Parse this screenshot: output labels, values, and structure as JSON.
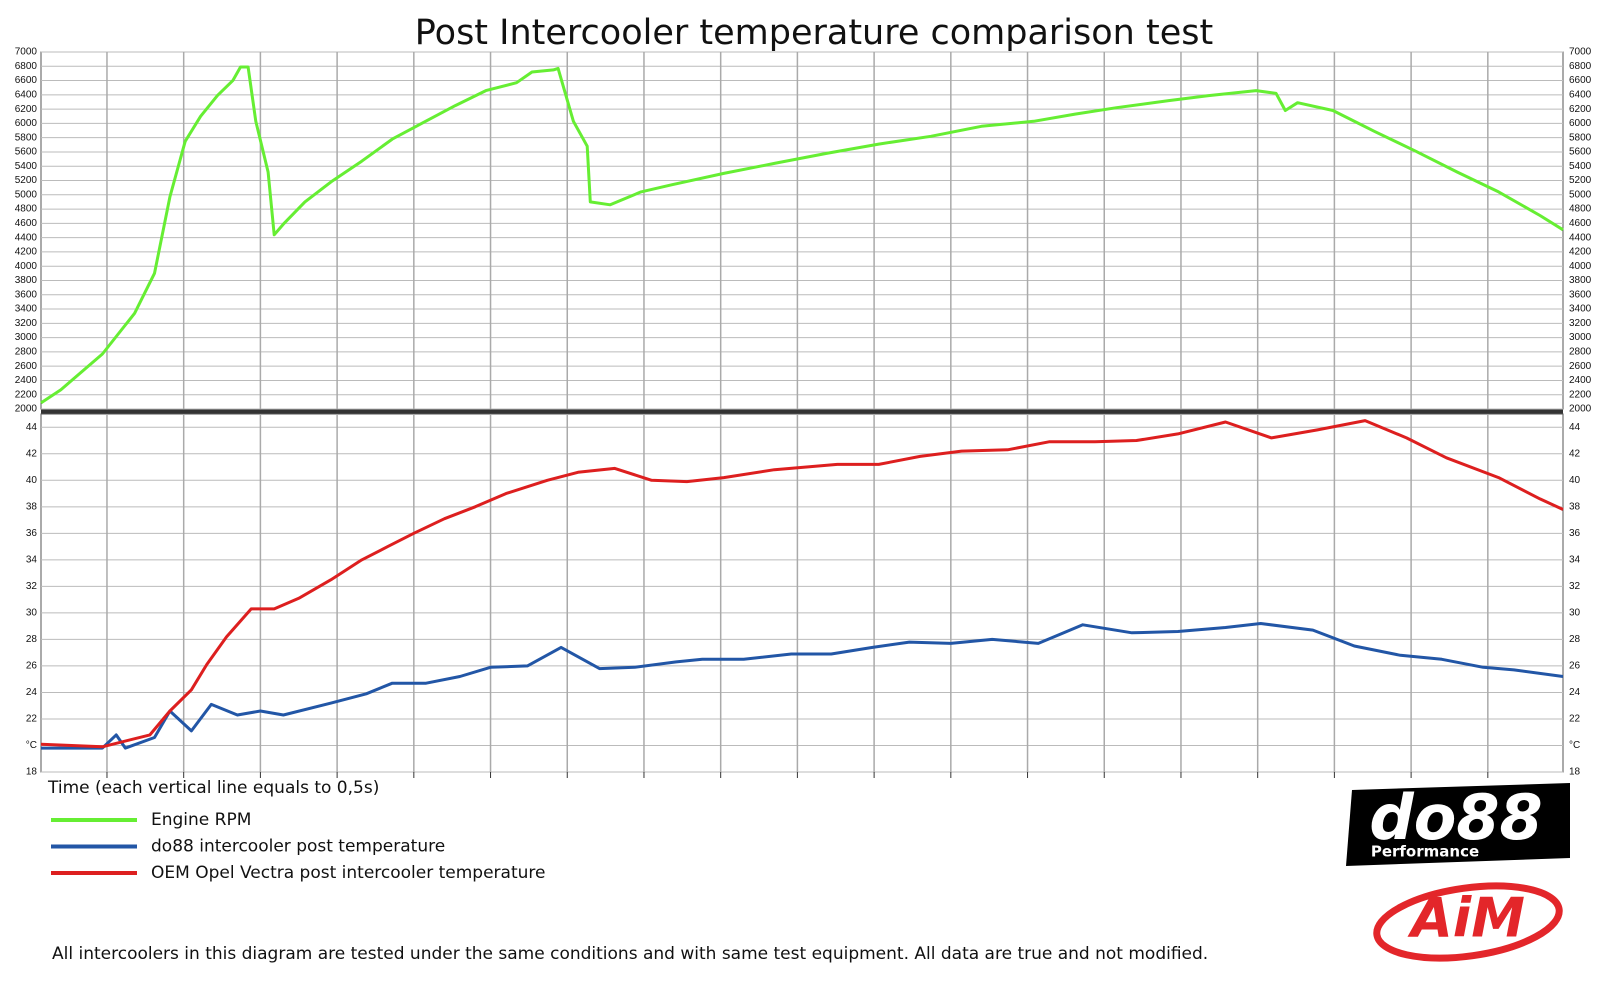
{
  "chart_data": [
    {
      "type": "line",
      "title": "Post Intercooler temperature comparison test",
      "xlim": [
        0.07,
        9.99
      ],
      "xticks": [
        0.5,
        1,
        1.5,
        2,
        2.5,
        3,
        3.5,
        4,
        4.5,
        5,
        5.5,
        6,
        6.5,
        7,
        7.5,
        8,
        8.5,
        9,
        9.5
      ],
      "ylim": [
        2000,
        7000
      ],
      "yticks": [
        2000,
        2200,
        2400,
        2600,
        2800,
        3000,
        3200,
        3400,
        3600,
        3800,
        4000,
        4200,
        4400,
        4600,
        4800,
        5000,
        5200,
        5400,
        5600,
        5800,
        6000,
        6200,
        6400,
        6600,
        6800,
        7000
      ],
      "grid": true,
      "series": [
        {
          "name": "Engine RPM",
          "color": "#66ee33",
          "x": [
            0.07,
            0.2,
            0.47,
            0.68,
            0.81,
            0.91,
            1.01,
            1.11,
            1.22,
            1.32,
            1.37,
            1.42,
            1.47,
            1.55,
            1.59,
            1.65,
            1.79,
            1.96,
            2.16,
            2.36,
            2.56,
            2.77,
            2.97,
            3.17,
            3.27,
            3.41,
            3.44,
            3.54,
            3.63,
            3.65,
            3.78,
            3.98,
            4.18,
            4.52,
            4.85,
            5.19,
            5.53,
            5.87,
            6.2,
            6.54,
            6.81,
            7.08,
            7.42,
            7.68,
            7.99,
            8.12,
            8.18,
            8.26,
            8.49,
            8.76,
            9.03,
            9.3,
            9.57,
            9.84,
            9.99
          ],
          "values": [
            2085,
            2270,
            2770,
            3340,
            3900,
            4970,
            5750,
            6100,
            6390,
            6600,
            6790,
            6790,
            6030,
            5320,
            4440,
            4590,
            4900,
            5180,
            5470,
            5780,
            6010,
            6250,
            6460,
            6570,
            6720,
            6750,
            6770,
            6030,
            5680,
            4900,
            4860,
            5040,
            5140,
            5300,
            5440,
            5580,
            5710,
            5820,
            5960,
            6030,
            6130,
            6220,
            6320,
            6390,
            6460,
            6420,
            6180,
            6290,
            6180,
            5890,
            5610,
            5320,
            5040,
            4710,
            4510
          ]
        }
      ]
    },
    {
      "type": "line",
      "x_label": "Time (each vertical line equals to 0,5s)",
      "xlim": [
        0.07,
        9.99
      ],
      "xticks": [
        0.5,
        1,
        1.5,
        2,
        2.5,
        3,
        3.5,
        4,
        4.5,
        5,
        5.5,
        6,
        6.5,
        7,
        7.5,
        8,
        8.5,
        9,
        9.5
      ],
      "ylim": [
        18,
        45
      ],
      "yticks": [
        18,
        {
          "value": 20,
          "label": "°C"
        },
        22,
        24,
        26,
        28,
        30,
        32,
        34,
        36,
        38,
        40,
        42,
        44
      ],
      "grid": true,
      "series": [
        {
          "name": "do88 intercooler post temperature",
          "color": "#2256a6",
          "x": [
            0.07,
            0.47,
            0.56,
            0.62,
            0.81,
            0.91,
            1.05,
            1.18,
            1.35,
            1.5,
            1.65,
            1.96,
            2.19,
            2.36,
            2.58,
            2.8,
            3,
            3.24,
            3.46,
            3.71,
            3.94,
            4.21,
            4.38,
            4.65,
            4.96,
            5.22,
            5.49,
            5.73,
            6,
            6.27,
            6.57,
            6.86,
            7.18,
            7.48,
            7.79,
            8.02,
            8.36,
            8.63,
            8.93,
            9.2,
            9.47,
            9.67,
            9.99
          ],
          "values": [
            19.8,
            19.8,
            20.8,
            19.8,
            20.6,
            22.6,
            21.1,
            23.1,
            22.3,
            22.6,
            22.3,
            23.2,
            23.9,
            24.7,
            24.7,
            25.2,
            25.9,
            26,
            27.4,
            25.8,
            25.9,
            26.3,
            26.5,
            26.5,
            26.9,
            26.9,
            27.4,
            27.8,
            27.7,
            28,
            27.7,
            29.1,
            28.5,
            28.6,
            28.9,
            29.2,
            28.7,
            27.5,
            26.8,
            26.5,
            25.9,
            25.7,
            25.2
          ]
        },
        {
          "name": "OEM Opel Vectra post intercooler temperature",
          "color": "#dd1f1f",
          "x": [
            0.07,
            0.47,
            0.78,
            0.91,
            1.05,
            1.15,
            1.28,
            1.44,
            1.59,
            1.75,
            1.96,
            2.16,
            2.33,
            2.5,
            2.7,
            2.9,
            3.1,
            3.37,
            3.57,
            3.81,
            4.05,
            4.28,
            4.52,
            4.85,
            5.26,
            5.53,
            5.8,
            6.07,
            6.37,
            6.64,
            6.94,
            7.21,
            7.48,
            7.79,
            8.09,
            8.39,
            8.7,
            8.97,
            9.23,
            9.57,
            9.84,
            9.99
          ],
          "values": [
            20.1,
            19.9,
            20.8,
            22.6,
            24.2,
            26.1,
            28.2,
            30.3,
            30.3,
            31.1,
            32.5,
            34,
            35,
            36,
            37.1,
            38,
            39,
            40,
            40.6,
            40.9,
            40,
            39.9,
            40.2,
            40.8,
            41.2,
            41.2,
            41.8,
            42.2,
            42.3,
            42.9,
            42.9,
            43,
            43.5,
            44.4,
            43.2,
            43.8,
            44.5,
            43.2,
            41.7,
            40.2,
            38.6,
            37.8
          ]
        }
      ]
    }
  ],
  "logos": [
    "do88",
    "Performance",
    "AiM"
  ],
  "footnote": "All intercoolers in this diagram are tested under the same conditions and with same test equipment. All data are true and not modified."
}
